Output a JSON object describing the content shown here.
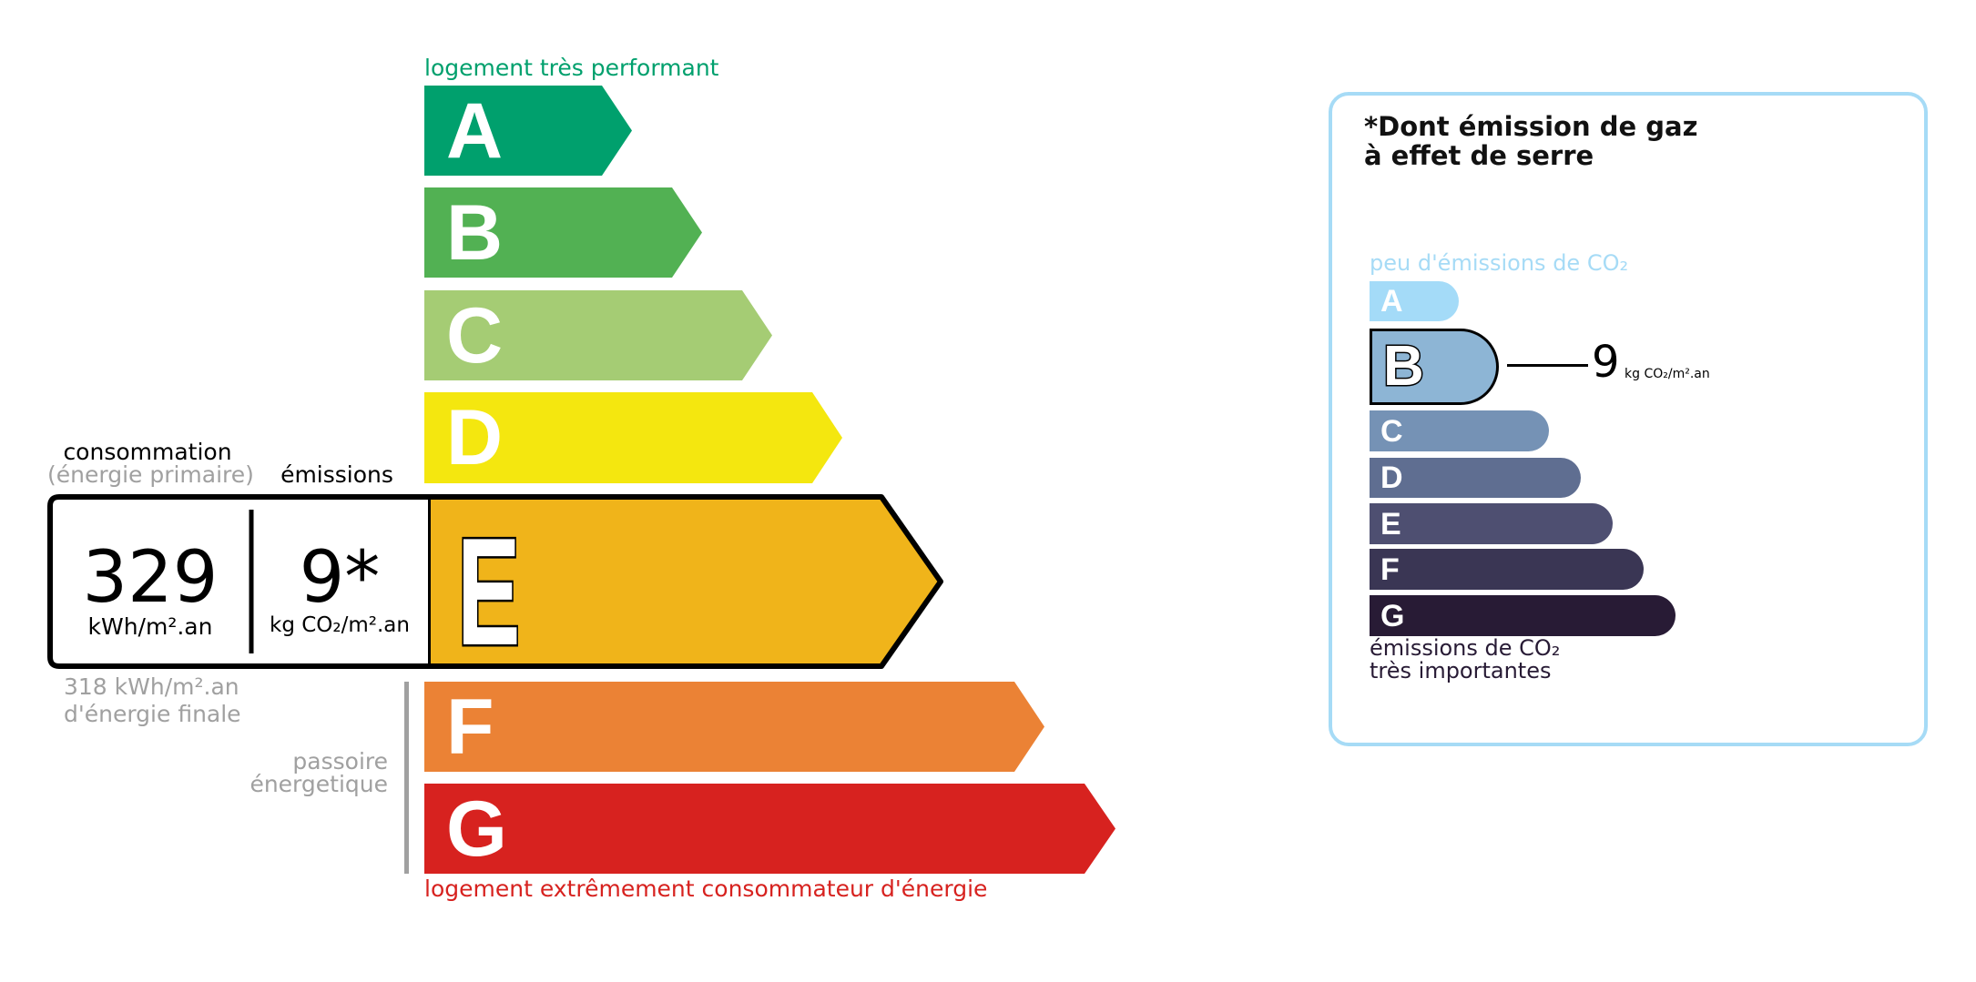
{
  "energy_scale": {
    "top_label": "logement très performant",
    "bottom_label": "logement extrêmement consommateur d'énergie",
    "top_label_color": "#00a06d",
    "bottom_label_color": "#d7221f",
    "classes": [
      {
        "letter": "A",
        "color": "#00a06d"
      },
      {
        "letter": "B",
        "color": "#52b153"
      },
      {
        "letter": "C",
        "color": "#a5cc74"
      },
      {
        "letter": "D",
        "color": "#f4e70f"
      },
      {
        "letter": "E",
        "color": "#f0b41a"
      },
      {
        "letter": "F",
        "color": "#eb8235"
      },
      {
        "letter": "G",
        "color": "#d7221f"
      }
    ],
    "current_class": "E",
    "passoire_label_1": "passoire",
    "passoire_label_2": "énergetique"
  },
  "readout": {
    "consumption_label": "consommation",
    "consumption_sublabel": "(énergie primaire)",
    "emissions_label": "émissions",
    "consumption_value": "329",
    "consumption_unit": "kWh/m².an",
    "emissions_value": "9*",
    "emissions_unit": "kg CO₂/m².an",
    "final_energy_1": "318 kWh/m².an",
    "final_energy_2": "d'énergie finale"
  },
  "ghg_panel": {
    "title_1": "*Dont émission de gaz",
    "title_2": "à effet de serre",
    "top_label": "peu d'émissions de CO₂",
    "bottom_label_1": "émissions de CO₂",
    "bottom_label_2": "très importantes",
    "border_color": "#a6dbf6",
    "classes": [
      {
        "letter": "A",
        "color": "#a4dbf8"
      },
      {
        "letter": "B",
        "color": "#8db5d5"
      },
      {
        "letter": "C",
        "color": "#7592b5"
      },
      {
        "letter": "D",
        "color": "#5f6e91"
      },
      {
        "letter": "E",
        "color": "#4e4f71"
      },
      {
        "letter": "F",
        "color": "#3a3654"
      },
      {
        "letter": "G",
        "color": "#281b35"
      }
    ],
    "current_class": "B",
    "value": "9",
    "unit": "kg CO₂/m².an"
  }
}
